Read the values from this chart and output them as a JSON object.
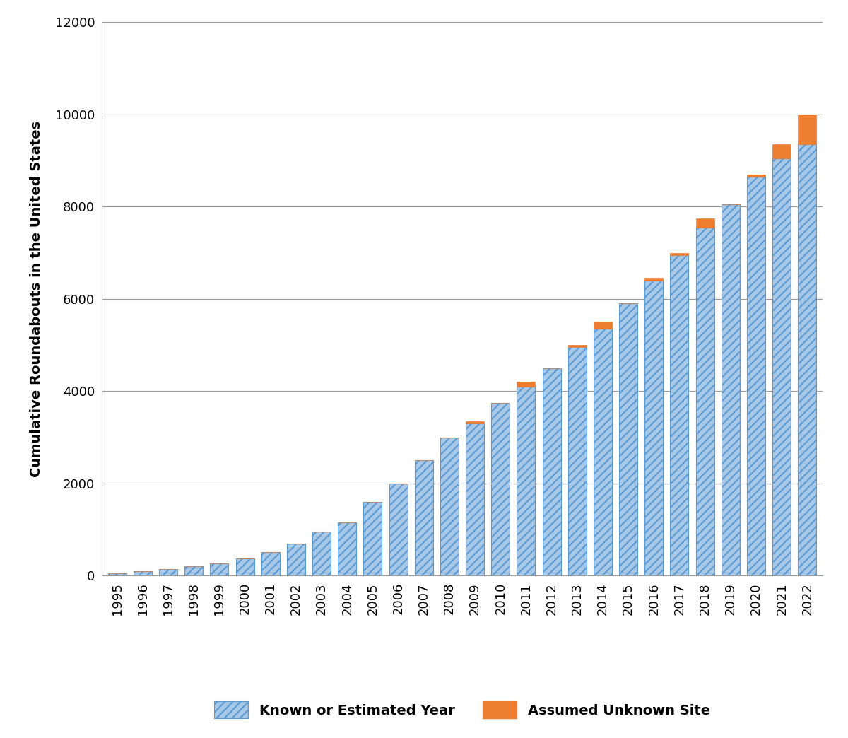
{
  "years": [
    1995,
    1996,
    1997,
    1998,
    1999,
    2000,
    2001,
    2002,
    2003,
    2004,
    2005,
    2006,
    2007,
    2008,
    2009,
    2010,
    2011,
    2012,
    2013,
    2014,
    2015,
    2016,
    2017,
    2018,
    2019,
    2020,
    2021,
    2022
  ],
  "known_values": [
    50,
    100,
    150,
    200,
    270,
    380,
    510,
    700,
    950,
    1150,
    1600,
    2000,
    2500,
    3000,
    3300,
    3750,
    4100,
    4500,
    4950,
    5350,
    5900,
    6400,
    6950,
    7550,
    8050,
    8650,
    9050,
    9350
  ],
  "unknown_values": [
    0,
    0,
    0,
    0,
    0,
    0,
    0,
    0,
    0,
    0,
    0,
    0,
    0,
    0,
    40,
    0,
    100,
    0,
    50,
    150,
    0,
    50,
    50,
    200,
    0,
    50,
    300,
    650
  ],
  "bar_facecolor": "#A8C8E8",
  "bar_edgecolor": "#5B9BD5",
  "hatch_color": "#FFFFFF",
  "orange_color": "#ED7D31",
  "ylabel": "Cumulative Roundabouts in the United States",
  "ylim": [
    0,
    12000
  ],
  "yticks": [
    0,
    2000,
    4000,
    6000,
    8000,
    10000,
    12000
  ],
  "legend_label_blue": "Known or Estimated Year",
  "legend_label_orange": "Assumed Unknown Site",
  "background_color": "#FFFFFF",
  "grid_color": "#999999",
  "spine_color": "#999999"
}
